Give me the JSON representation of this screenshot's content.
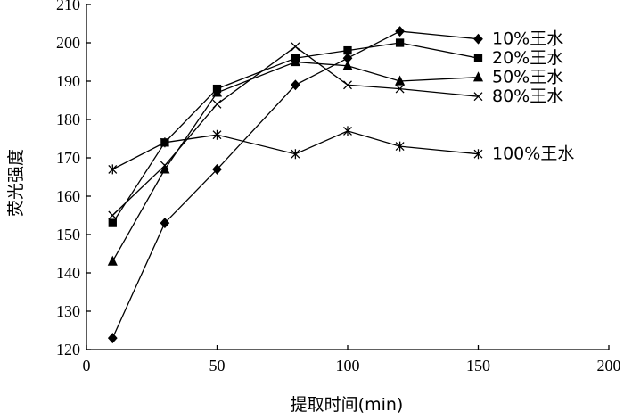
{
  "chart_data": {
    "type": "line",
    "title": "",
    "xlabel": "提取时间(min)",
    "ylabel": "荧光强度",
    "xlim": [
      0,
      200
    ],
    "ylim": [
      120,
      210
    ],
    "xticks": [
      0,
      50,
      100,
      150,
      200
    ],
    "yticks": [
      120,
      130,
      140,
      150,
      160,
      170,
      180,
      190,
      200,
      210
    ],
    "grid": false,
    "legend": "inline labels at line ends",
    "x": [
      10,
      30,
      50,
      80,
      100,
      120,
      150
    ],
    "series": [
      {
        "name": "10%王水",
        "marker": "diamond",
        "values": [
          123,
          153,
          167,
          189,
          196,
          203,
          201
        ]
      },
      {
        "name": "20%王水",
        "marker": "square",
        "values": [
          153,
          174,
          188,
          196,
          198,
          200,
          196
        ]
      },
      {
        "name": "50%王水",
        "marker": "triangle",
        "values": [
          143,
          167,
          187,
          195,
          194,
          190,
          191
        ]
      },
      {
        "name": "80%王水",
        "marker": "x",
        "values": [
          155,
          168,
          184,
          199,
          189,
          188,
          186
        ]
      },
      {
        "name": "100%王水",
        "marker": "asterisk",
        "values": [
          167,
          174,
          176,
          171,
          177,
          173,
          171
        ]
      }
    ]
  }
}
